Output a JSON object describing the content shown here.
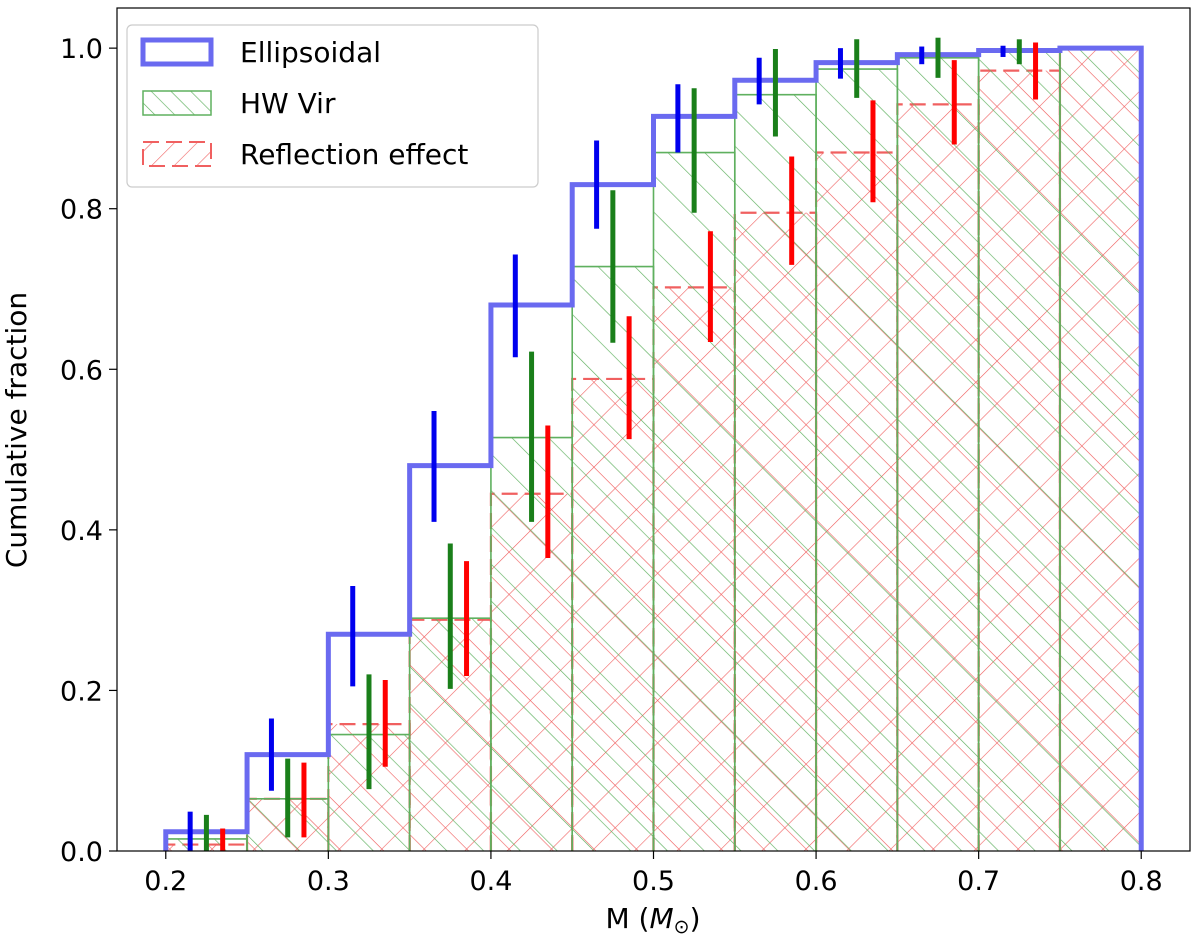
{
  "chart_data": {
    "type": "bar",
    "subtype": "cumulative step histogram",
    "xlabel": "M (",
    "xlabel_symbol": "M",
    "xlabel_subscript": "⊙",
    "xlabel_close": ")",
    "ylabel": "Cumulative fraction",
    "xlim": [
      0.17,
      0.83
    ],
    "ylim": [
      0,
      1.05
    ],
    "xticks": [
      0.2,
      0.3,
      0.4,
      0.5,
      0.6,
      0.7,
      0.8
    ],
    "xtick_labels": [
      "0.2",
      "0.3",
      "0.4",
      "0.5",
      "0.6",
      "0.7",
      "0.8"
    ],
    "yticks": [
      0.0,
      0.2,
      0.4,
      0.6,
      0.8,
      1.0
    ],
    "ytick_labels": [
      "0.0",
      "0.2",
      "0.4",
      "0.6",
      "0.8",
      "1.0"
    ],
    "bin_edges": [
      0.2,
      0.25,
      0.3,
      0.35,
      0.4,
      0.45,
      0.5,
      0.55,
      0.6,
      0.65,
      0.7,
      0.75,
      0.8
    ],
    "legend_position": "upper-left",
    "series": [
      {
        "name": "Ellipsoidal",
        "style": "outline",
        "color": "#6a6af0",
        "errorbar_color": "#0000ee",
        "values": [
          0.024,
          0.12,
          0.27,
          0.48,
          0.68,
          0.83,
          0.915,
          0.96,
          0.982,
          0.992,
          0.997,
          1.0
        ],
        "err_low": [
          0.045,
          0.045,
          0.065,
          0.07,
          0.065,
          0.055,
          0.045,
          0.03,
          0.02,
          0.012,
          0.008,
          0.0
        ],
        "err_high": [
          0.025,
          0.045,
          0.06,
          0.068,
          0.063,
          0.055,
          0.04,
          0.028,
          0.018,
          0.01,
          0.006,
          0.0
        ],
        "errorbar_offset": 0.015
      },
      {
        "name": "HW Vir",
        "style": "hatch-diagonal",
        "color": "#5fb05f",
        "errorbar_color": "#1a7f1a",
        "values": [
          0.015,
          0.065,
          0.145,
          0.29,
          0.515,
          0.728,
          0.87,
          0.942,
          0.974,
          0.988,
          0.996,
          1.0
        ],
        "err_low": [
          0.015,
          0.048,
          0.068,
          0.088,
          0.105,
          0.095,
          0.075,
          0.052,
          0.036,
          0.025,
          0.016,
          0.0
        ],
        "err_high": [
          0.03,
          0.05,
          0.075,
          0.093,
          0.107,
          0.095,
          0.08,
          0.057,
          0.037,
          0.025,
          0.015,
          0.0
        ],
        "errorbar_offset": 0.025
      },
      {
        "name": "Reflection effect",
        "style": "hatch-cross-dashed",
        "color": "#f06060",
        "errorbar_color": "#ff0000",
        "values": [
          0.008,
          0.065,
          0.158,
          0.288,
          0.445,
          0.588,
          0.702,
          0.795,
          0.87,
          0.93,
          0.972,
          1.0
        ],
        "err_low": [
          0.008,
          0.048,
          0.053,
          0.07,
          0.08,
          0.075,
          0.068,
          0.065,
          0.062,
          0.05,
          0.036,
          0.0
        ],
        "err_high": [
          0.02,
          0.045,
          0.055,
          0.073,
          0.085,
          0.078,
          0.07,
          0.07,
          0.065,
          0.055,
          0.035,
          0.0
        ],
        "errorbar_offset": 0.035
      }
    ]
  }
}
